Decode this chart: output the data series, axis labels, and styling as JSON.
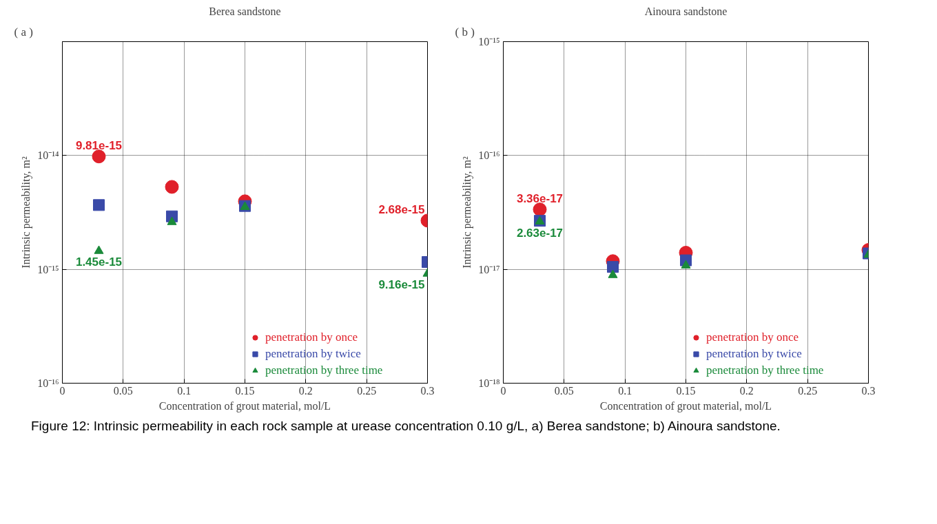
{
  "chart_data": [
    {
      "type": "scatter",
      "title": "Berea sandstone",
      "xlabel": "Concentration of grout material, mol/L",
      "ylabel": "Intrinsic permeability, m²",
      "log": true,
      "grid": true,
      "legend": "bottom right",
      "annotations": [
        "( a )",
        "Figure 12: Intrinsic permeability in each rock sample at urease concentration 0.10 g/L, a) Berea sandstone; b) Ainoura sandstone."
      ],
      "xlim": [
        0,
        0.3
      ],
      "xticks": [
        0,
        0.05,
        0.1,
        0.15,
        0.2,
        0.25,
        0.3
      ],
      "ylim": [
        1e-16,
        1e-13
      ],
      "yticks": [
        {
          "value": 1e-16,
          "label": "10⁻¹⁶"
        },
        {
          "value": 1e-15,
          "label": "10⁻¹⁵"
        },
        {
          "value": 1e-14,
          "label": "10⁻¹⁴"
        },
        {
          "value": 1e-13,
          "label": null
        }
      ],
      "x": [
        0.03,
        0.09,
        0.15,
        0.3
      ],
      "series": [
        {
          "name": "penetration by once",
          "color": "#e0202a",
          "marker": "circle",
          "values": [
            9.81e-15,
            5.3e-15,
            3.96e-15,
            2.68e-15
          ],
          "value_labels": [
            "9.81e-15",
            null,
            null,
            "2.68e-15"
          ]
        },
        {
          "name": "penetration by twice",
          "color": "#3a4aa8",
          "marker": "square",
          "values": [
            3.67e-15,
            2.92e-15,
            3.6e-15,
            1.16e-15
          ],
          "value_labels": [
            null,
            null,
            null,
            null
          ]
        },
        {
          "name": "penetration by three time",
          "color": "#1a8a3a",
          "marker": "triangle",
          "values": [
            1.45e-15,
            2.6e-15,
            3.53e-15,
            9.16e-16
          ],
          "value_labels": [
            "1.45e-15",
            null,
            null,
            "9.16e-15"
          ]
        }
      ]
    },
    {
      "type": "scatter",
      "title": "Ainoura sandstone",
      "xlabel": "Concentration of grout material, mol/L",
      "ylabel": "Intrinsic permeability, m²",
      "log": true,
      "grid": true,
      "legend": "bottom right",
      "annotations": [
        "( b )"
      ],
      "xlim": [
        0,
        0.3
      ],
      "xticks": [
        0,
        0.05,
        0.1,
        0.15,
        0.2,
        0.25,
        0.3
      ],
      "ylim": [
        1e-18,
        1e-15
      ],
      "yticks": [
        {
          "value": 1e-18,
          "label": "10⁻¹⁸"
        },
        {
          "value": 1e-17,
          "label": "10⁻¹⁷"
        },
        {
          "value": 1e-16,
          "label": "10⁻¹⁶"
        },
        {
          "value": 1e-15,
          "label": "10⁻¹⁵"
        }
      ],
      "x": [
        0.03,
        0.09,
        0.15,
        0.3
      ],
      "series": [
        {
          "name": "penetration by once",
          "color": "#e0202a",
          "marker": "circle",
          "values": [
            3.36e-17,
            1.18e-17,
            1.4e-17,
            1.48e-17
          ],
          "value_labels": [
            "3.36e-17",
            null,
            null,
            null
          ]
        },
        {
          "name": "penetration by twice",
          "color": "#3a4aa8",
          "marker": "square",
          "values": [
            2.67e-17,
            1.05e-17,
            1.2e-17,
            1.38e-17
          ],
          "value_labels": [
            null,
            null,
            null,
            null
          ]
        },
        {
          "name": "penetration by three time",
          "color": "#1a8a3a",
          "marker": "triangle",
          "values": [
            2.63e-17,
            8.9e-18,
            1.08e-17,
            1.34e-17
          ],
          "value_labels": [
            "2.63e-17",
            null,
            null,
            null
          ]
        }
      ]
    }
  ]
}
